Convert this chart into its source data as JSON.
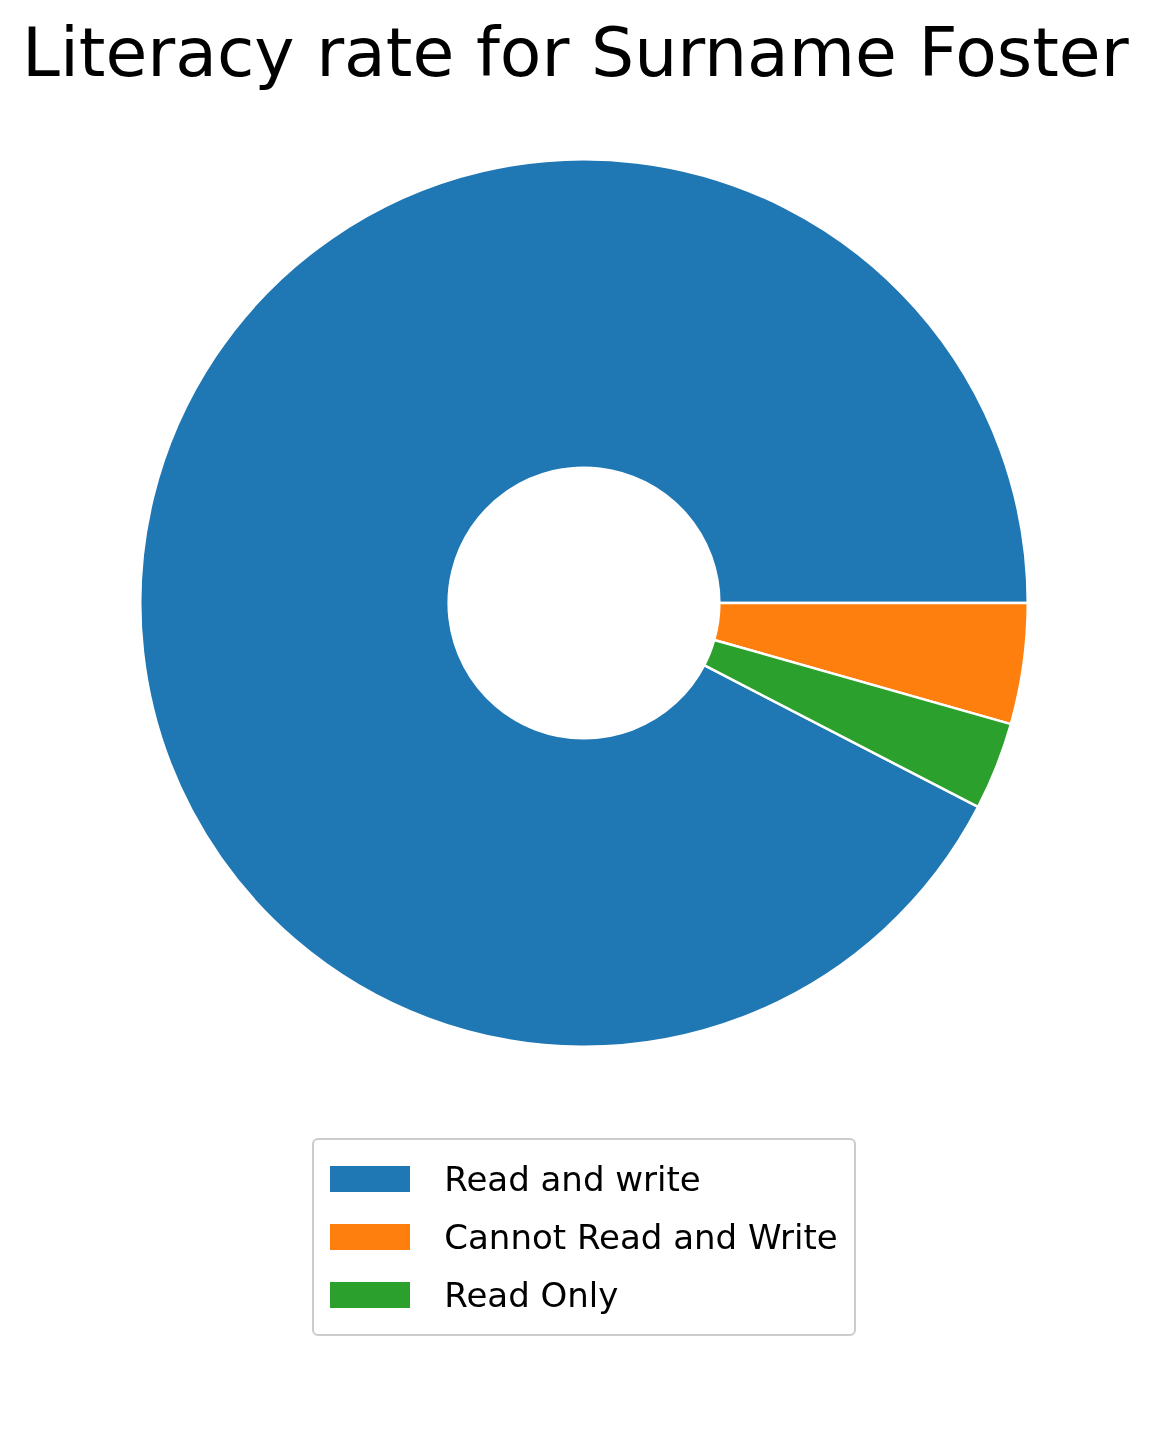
{
  "chart_data": {
    "type": "donut",
    "title": "Literacy rate for Surname Foster",
    "categories": [
      "Read and write",
      "Cannot Read and Write",
      "Read Only"
    ],
    "values": [
      92.4,
      4.4,
      3.2
    ],
    "colors": [
      "#1f77b4",
      "#ff7f0e",
      "#2ca02c"
    ],
    "legend": "bottom"
  }
}
